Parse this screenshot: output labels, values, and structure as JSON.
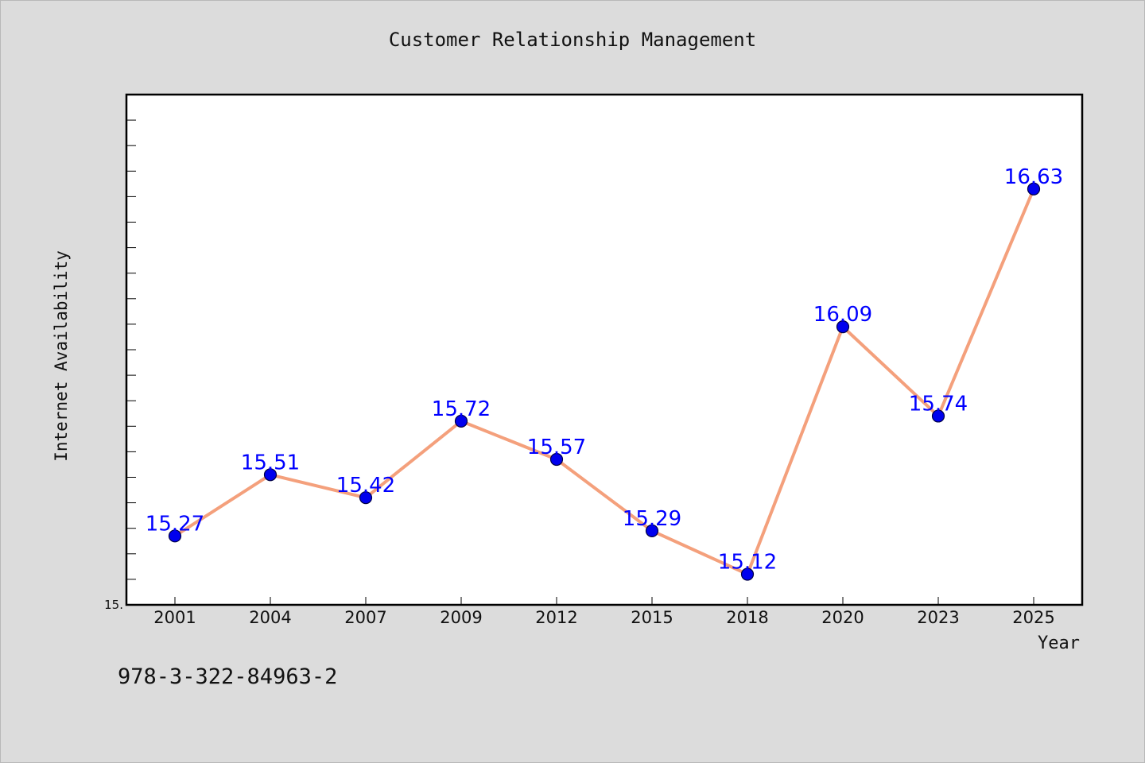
{
  "chart_data": {
    "type": "line",
    "title": "Customer Relationship Management",
    "xlabel": "Year",
    "ylabel": "Internet Availability",
    "categories": [
      "2001",
      "2004",
      "2007",
      "2009",
      "2012",
      "2015",
      "2018",
      "2020",
      "2023",
      "2025"
    ],
    "series": [
      {
        "values": [
          15.27,
          15.51,
          15.42,
          15.72,
          15.57,
          15.29,
          15.12,
          16.09,
          15.74,
          16.63
        ],
        "labels": [
          "15.27",
          "15.51",
          "15.42",
          "15.72",
          "15.57",
          "15.29",
          "15.12",
          "16.09",
          "15.74",
          "16.63"
        ]
      }
    ],
    "ylim": [
      15.0,
      17.0
    ],
    "y_tick_label": "15.",
    "grid": false,
    "legend": "none",
    "colors": {
      "line": "#f4a07c",
      "marker": "#0000ee",
      "marker_edge": "#000044",
      "data_label": "#0000ff",
      "plot_background": "#ffffff",
      "figure_background": "#dcdcdc"
    }
  },
  "caption": "978-3-322-84963-2"
}
